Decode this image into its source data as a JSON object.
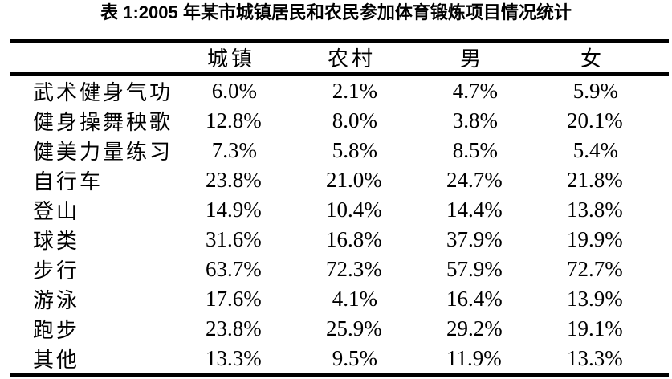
{
  "title": "表 1:2005 年某市城镇居民和农民参加体育锻炼项目情况统计",
  "table": {
    "corner_label": "",
    "columns": [
      "城镇",
      "农村",
      "男",
      "女"
    ],
    "rows": [
      {
        "label": "武术健身气功",
        "values": [
          "6.0%",
          "2.1%",
          "4.7%",
          "5.9%"
        ]
      },
      {
        "label": "健身操舞秧歌",
        "values": [
          "12.8%",
          "8.0%",
          "3.8%",
          "20.1%"
        ]
      },
      {
        "label": "健美力量练习",
        "values": [
          "7.3%",
          "5.8%",
          "8.5%",
          "5.4%"
        ]
      },
      {
        "label": "自行车",
        "values": [
          "23.8%",
          "21.0%",
          "24.7%",
          "21.8%"
        ]
      },
      {
        "label": "登山",
        "values": [
          "14.9%",
          "10.4%",
          "14.4%",
          "13.8%"
        ]
      },
      {
        "label": "球类",
        "values": [
          "31.6%",
          "16.8%",
          "37.9%",
          "19.9%"
        ]
      },
      {
        "label": "步行",
        "values": [
          "63.7%",
          "72.3%",
          "57.9%",
          "72.7%"
        ]
      },
      {
        "label": "游泳",
        "values": [
          "17.6%",
          "4.1%",
          "16.4%",
          "13.9%"
        ]
      },
      {
        "label": "跑步",
        "values": [
          "23.8%",
          "25.9%",
          "29.2%",
          "19.1%"
        ]
      },
      {
        "label": "其他",
        "values": [
          "13.3%",
          "9.5%",
          "11.9%",
          "13.3%"
        ]
      }
    ]
  },
  "chart_data": {
    "type": "table",
    "title": "表 1:2005 年某市城镇居民和农民参加体育锻炼项目情况统计",
    "categories": [
      "城镇",
      "农村",
      "男",
      "女"
    ],
    "unit": "%",
    "series": [
      {
        "name": "武术健身气功",
        "values": [
          6.0,
          2.1,
          4.7,
          5.9
        ]
      },
      {
        "name": "健身操舞秧歌",
        "values": [
          12.8,
          8.0,
          3.8,
          20.1
        ]
      },
      {
        "name": "健美力量练习",
        "values": [
          7.3,
          5.8,
          8.5,
          5.4
        ]
      },
      {
        "name": "自行车",
        "values": [
          23.8,
          21.0,
          24.7,
          21.8
        ]
      },
      {
        "name": "登山",
        "values": [
          14.9,
          10.4,
          14.4,
          13.8
        ]
      },
      {
        "name": "球类",
        "values": [
          31.6,
          16.8,
          37.9,
          19.9
        ]
      },
      {
        "name": "步行",
        "values": [
          63.7,
          72.3,
          57.9,
          72.7
        ]
      },
      {
        "name": "游泳",
        "values": [
          17.6,
          4.1,
          16.4,
          13.9
        ]
      },
      {
        "name": "跑步",
        "values": [
          23.8,
          25.9,
          29.2,
          19.1
        ]
      },
      {
        "name": "其他",
        "values": [
          13.3,
          9.5,
          11.9,
          13.3
        ]
      }
    ]
  },
  "colors": {
    "background": "#ffffff",
    "text": "#000000",
    "rule": "#000000"
  }
}
